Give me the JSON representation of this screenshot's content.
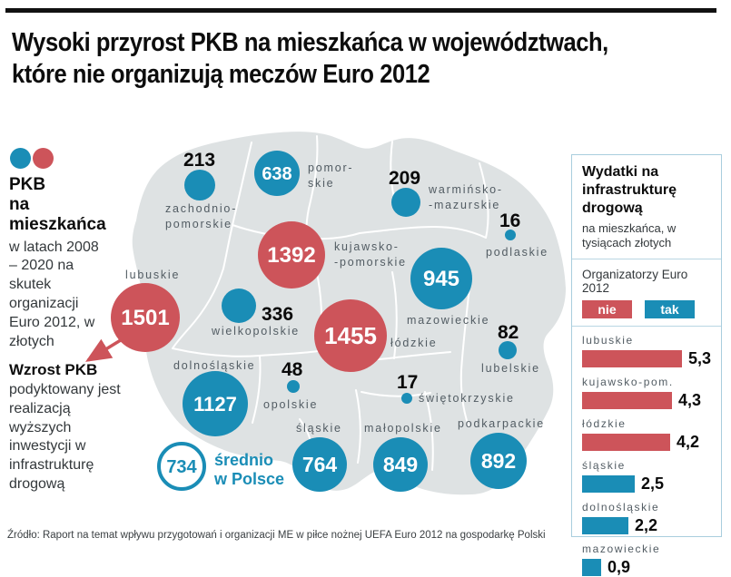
{
  "title": {
    "line1": "Wysoki przyrost PKB na mieszkańca w województwach,",
    "line2": "które nie organizują meczów Euro 2012"
  },
  "colors": {
    "organizer_no_red": "#cd545a",
    "organizer_yes_blue": "#1a8db6",
    "map_fill": "#dee2e3",
    "label_gray": "#525c63"
  },
  "legend": {
    "heading_line1": "PKB",
    "heading_line2": "na mieszkańca",
    "subtext": "w latach 2008 – 2020 na skutek organizacji Euro 2012, w złotych",
    "note_heading": "Wzrost PKB",
    "note_body": "podyktowany jest realizacją wyższych inwestycji w infrastrukturę drogową"
  },
  "map": {
    "average": {
      "value": "734",
      "label_lines": [
        "średnio",
        "w Polsce"
      ]
    },
    "regions": [
      {
        "name": "zachodniopomorskie",
        "value": "213",
        "label_lines": [
          "zachodnio-",
          "pomorskie"
        ]
      },
      {
        "name": "pomorskie",
        "value": "638",
        "label_lines": [
          "pomor-",
          "skie"
        ]
      },
      {
        "name": "warminsko-mazurskie",
        "value": "209",
        "label_lines": [
          "warmińsko-",
          "-mazurskie"
        ]
      },
      {
        "name": "podlaskie",
        "value": "16",
        "label_lines": [
          "podlaskie"
        ]
      },
      {
        "name": "kujawsko-pomorskie",
        "value": "1392",
        "label_lines": [
          "kujawsko-",
          "-pomorskie"
        ]
      },
      {
        "name": "mazowieckie",
        "value": "945",
        "label_lines": [
          "mazowieckie"
        ]
      },
      {
        "name": "lubuskie",
        "value": "1501",
        "label_lines": [
          "lubuskie"
        ]
      },
      {
        "name": "wielkopolskie",
        "value": "336",
        "label_lines": [
          "wielkopolskie"
        ]
      },
      {
        "name": "lodzkie",
        "value": "1455",
        "label_lines": [
          "łódzkie"
        ]
      },
      {
        "name": "lubelskie",
        "value": "82",
        "label_lines": [
          "lubelskie"
        ]
      },
      {
        "name": "dolnoslaskie",
        "value": "1127",
        "label_lines": [
          "dolnośląskie"
        ]
      },
      {
        "name": "opolskie",
        "value": "48",
        "label_lines": [
          "opolskie"
        ]
      },
      {
        "name": "swietokrzyskie",
        "value": "17",
        "label_lines": [
          "świętokrzyskie"
        ]
      },
      {
        "name": "slaskie",
        "value": "764",
        "label_lines": [
          "śląskie"
        ]
      },
      {
        "name": "malopolskie",
        "value": "849",
        "label_lines": [
          "małopolskie"
        ]
      },
      {
        "name": "podkarpackie",
        "value": "892",
        "label_lines": [
          "podkarpackie"
        ]
      }
    ]
  },
  "side_panel": {
    "title": "Wydatki na infrastrukturę drogową",
    "subtitle": "na mieszkańca, w tysiącach złotych",
    "legend_label": "Organizatorzy Euro 2012",
    "legend_no": "nie",
    "legend_yes": "tak",
    "bars": [
      {
        "label": "lubuskie",
        "value_display": "5,3"
      },
      {
        "label": "kujawsko-pom.",
        "value_display": "4,3"
      },
      {
        "label": "łódzkie",
        "value_display": "4,2"
      },
      {
        "label": "śląskie",
        "value_display": "2,5"
      },
      {
        "label": "dolnośląskie",
        "value_display": "2,2"
      },
      {
        "label": "mazowieckie",
        "value_display": "0,9"
      }
    ]
  },
  "footer": "Źródło: Raport na temat wpływu przygotowań i organizacji ME w piłce nożnej UEFA Euro 2012 na gospodarkę Polski",
  "chart_data": [
    {
      "type": "bubble-map",
      "title": "PKB na mieszkańca w latach 2008 – 2020 na skutek organizacji Euro 2012, w złotych",
      "categories": [
        "zachodniopomorskie",
        "pomorskie",
        "warmińsko-mazurskie",
        "podlaskie",
        "kujawsko-pomorskie",
        "mazowieckie",
        "lubuskie",
        "wielkopolskie",
        "łódzkie",
        "lubelskie",
        "dolnośląskie",
        "opolskie",
        "świętokrzyskie",
        "śląskie",
        "małopolskie",
        "podkarpackie"
      ],
      "values": [
        213,
        638,
        209,
        16,
        1392,
        945,
        1501,
        336,
        1455,
        82,
        1127,
        48,
        17,
        764,
        849,
        892
      ],
      "bubble_colors": [
        "blue",
        "blue",
        "blue",
        "blue",
        "red",
        "blue",
        "red",
        "blue",
        "red",
        "blue",
        "blue",
        "blue",
        "blue",
        "blue",
        "blue",
        "blue"
      ],
      "average": {
        "label": "średnio w Polsce",
        "value": 734
      }
    },
    {
      "type": "bar",
      "title": "Wydatki na infrastrukturę drogową",
      "ylabel": "",
      "xlabel": "na mieszkańca, w tysiącach złotych",
      "categories": [
        "lubuskie",
        "kujawsko-pom.",
        "łódzkie",
        "śląskie",
        "dolnośląskie",
        "mazowieckie"
      ],
      "values": [
        5.3,
        4.3,
        4.2,
        2.5,
        2.2,
        0.9
      ],
      "bar_colors": [
        "red",
        "red",
        "red",
        "blue",
        "blue",
        "blue"
      ],
      "xlim": [
        0,
        5.5
      ],
      "legend": {
        "nie": "red = nie organizuje Euro 2012",
        "tak": "blue = organizuje Euro 2012"
      }
    }
  ]
}
